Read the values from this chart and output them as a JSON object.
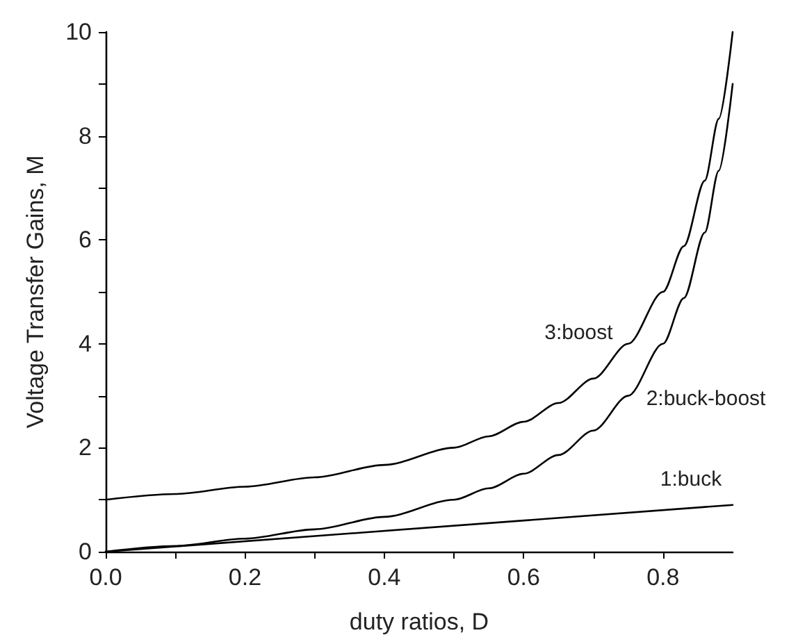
{
  "chart_data": {
    "type": "line",
    "xlabel": "duty ratios, D",
    "ylabel": "Voltage Transfer Gains, M",
    "x": [
      0,
      0.1,
      0.2,
      0.3,
      0.4,
      0.5,
      0.55,
      0.6,
      0.65,
      0.7,
      0.75,
      0.8,
      0.83,
      0.86,
      0.88,
      0.9
    ],
    "series": [
      {
        "name": "1:buck",
        "color": "#000000",
        "x": [
          0,
          0.9
        ],
        "values": [
          0,
          0.9
        ]
      },
      {
        "name": "2:buck-boost",
        "color": "#000000",
        "values": [
          0,
          0.11,
          0.25,
          0.43,
          0.67,
          1,
          1.22,
          1.5,
          1.86,
          2.33,
          3,
          4,
          4.88,
          6.14,
          7.33,
          9
        ]
      },
      {
        "name": "3:boost",
        "color": "#000000",
        "values": [
          1,
          1.11,
          1.25,
          1.43,
          1.67,
          2,
          2.22,
          2.5,
          2.86,
          3.33,
          4,
          5,
          5.88,
          7.14,
          8.33,
          10
        ]
      }
    ],
    "xlim": [
      0,
      0.9
    ],
    "xticks": [
      {
        "value": 0,
        "label": "0.0"
      },
      {
        "value": 0.1,
        "label": null
      },
      {
        "value": 0.2,
        "label": "0.2"
      },
      {
        "value": 0.3,
        "label": null
      },
      {
        "value": 0.4,
        "label": "0.4"
      },
      {
        "value": 0.5,
        "label": null
      },
      {
        "value": 0.6,
        "label": "0.6"
      },
      {
        "value": 0.7,
        "label": null
      },
      {
        "value": 0.8,
        "label": "0.8"
      }
    ],
    "ylim": [
      0,
      10
    ],
    "yticks": [
      0,
      {
        "value": 1,
        "label": null
      },
      2,
      {
        "value": 3,
        "label": null
      },
      4,
      {
        "value": 5,
        "label": null
      },
      6,
      {
        "value": 7,
        "label": null
      },
      8,
      {
        "value": 9,
        "label": null
      },
      10
    ],
    "grid": false,
    "legend": false,
    "marker": "none",
    "line_style": "solid"
  }
}
